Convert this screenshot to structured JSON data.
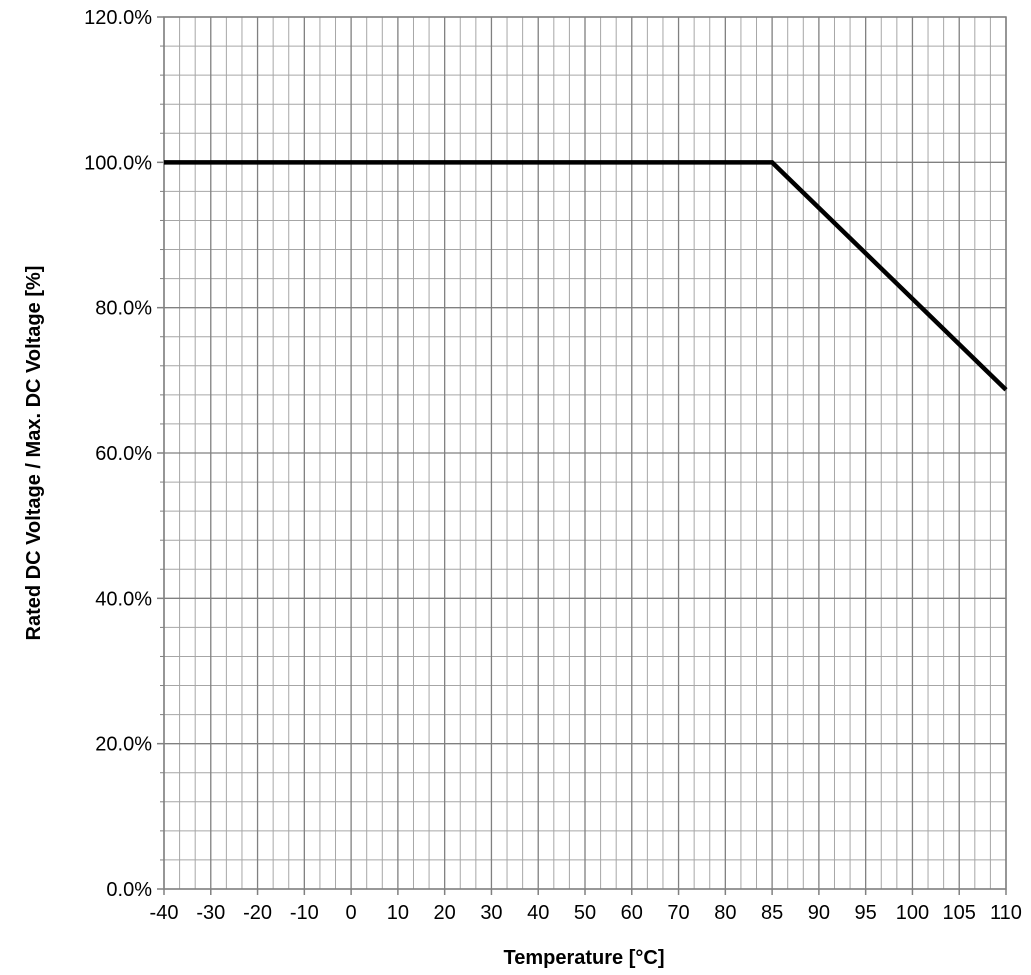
{
  "chart_data": {
    "type": "line",
    "title": "",
    "xlabel": "Temperature [°C]",
    "ylabel": "Rated DC Voltage / Max. DC Voltage [%]",
    "x_tick_labels": [
      "-40",
      "-30",
      "-20",
      "-10",
      "0",
      "10",
      "20",
      "30",
      "40",
      "50",
      "60",
      "70",
      "80",
      "85",
      "90",
      "95",
      "100",
      "105",
      "110"
    ],
    "y_tick_labels": [
      "0.0%",
      "20.0%",
      "40.0%",
      "60.0%",
      "80.0%",
      "100.0%",
      "120.0%"
    ],
    "y_ticks": [
      0,
      20,
      40,
      60,
      80,
      100,
      120
    ],
    "ylim": [
      0,
      120
    ],
    "grid": true,
    "series": [
      {
        "x": [
          -40,
          85,
          110
        ],
        "y": [
          100,
          100,
          68.7
        ]
      }
    ],
    "colors": {
      "line": "#000000",
      "grid": "#a6a6a6",
      "axis": "#808080"
    }
  }
}
